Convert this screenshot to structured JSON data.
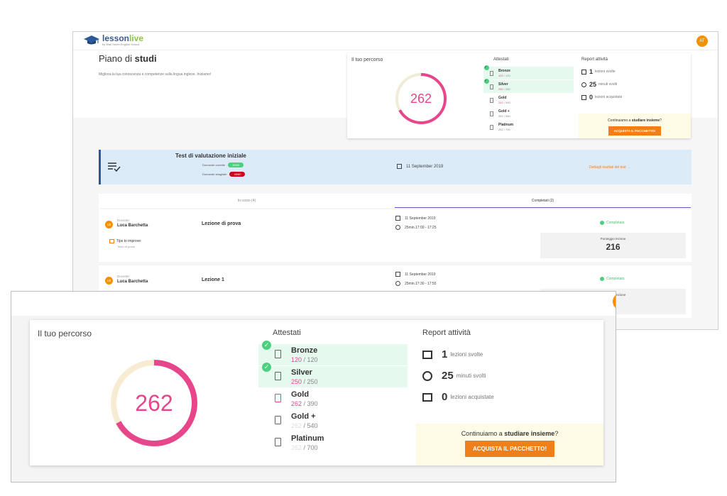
{
  "app": {
    "logo_main": "lesson",
    "logo_accent": "live",
    "logo_sub": "by Wall Street English School",
    "user_initials": "AT"
  },
  "page": {
    "title_light": "Piano di",
    "title_bold": "studi",
    "subtitle": "Migliora la tua conoscenza e competenze sulla lingua inglese. Iniziamo!"
  },
  "percorso": {
    "title": "Il tuo percorso",
    "points": "262",
    "progress_fraction": 0.67
  },
  "attestati": {
    "title": "Attestati",
    "items": [
      {
        "name": "Bronze",
        "current": "120",
        "total": "/ 120",
        "completed": true
      },
      {
        "name": "Silver",
        "current": "250",
        "total": "/ 250",
        "completed": true
      },
      {
        "name": "Gold",
        "current": "262",
        "total": "/ 390",
        "completed": false
      },
      {
        "name": "Gold +",
        "current": "262",
        "total": "/ 540",
        "completed": false
      },
      {
        "name": "Platinum",
        "current": "262",
        "total": "/ 700",
        "completed": false
      }
    ]
  },
  "report": {
    "title": "Report attività",
    "items": [
      {
        "icon": "video-camera-icon",
        "value": "1",
        "label": "lezioni svolte"
      },
      {
        "icon": "clock-icon",
        "value": "25",
        "label": "minuti svolti"
      },
      {
        "icon": "shopping-bag-icon",
        "value": "0",
        "label": "lezioni acquistate"
      }
    ],
    "cta_text_light": "Continuiamo a",
    "cta_text_bold": "studiare insieme",
    "cta_text_end": "?",
    "cta_button": "ACQUISTA IL PACCHETTO!"
  },
  "test": {
    "title": "Test di valutazione iniziale",
    "correct_label": "Domande corrette",
    "correct_value": "15/60",
    "wrong_label": "Domande sbagliate",
    "wrong_value": "45/60",
    "date": "11 September 2019",
    "details_link": "Dettagli risultati del test →"
  },
  "tabs": [
    {
      "label": "In corso (4)",
      "active": false
    },
    {
      "label": "Completati (2)",
      "active": true
    }
  ],
  "lessons": [
    {
      "initials": "LB",
      "teacher_label": "Docente:",
      "teacher": "Luca Barchetta",
      "title": "Lezione di prova",
      "date": "11 September 2019",
      "time": "25min.17:00 - 17:25",
      "status": "Completato",
      "tips_label": "Tips to improve:",
      "tips_sub": "Testo di prova",
      "score_label": "Punteggio lezione",
      "score": "216"
    },
    {
      "initials": "LB",
      "teacher_label": "Docente:",
      "teacher": "Luca Barchetta",
      "title": "Lezione 1",
      "date": "11 September 2019",
      "time": "25min.17:30 - 17:55",
      "status": "Completato",
      "score_label": "Punteggio lezione"
    }
  ],
  "colors": {
    "accent_orange": "#f07f1a",
    "ring_pink": "#e7468d",
    "success_green": "#4cd080",
    "brand_blue": "#2b5a9a"
  }
}
